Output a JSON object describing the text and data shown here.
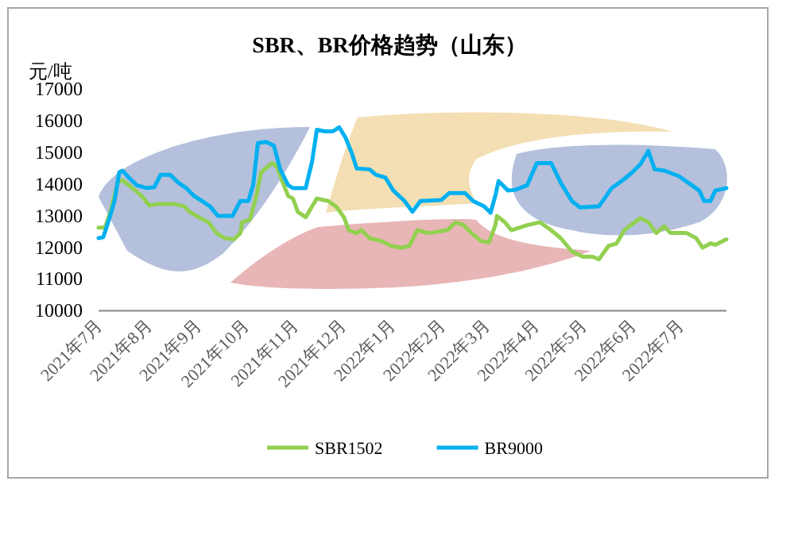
{
  "chart_data": {
    "type": "line",
    "title": "SBR、BR价格趋势（山东）",
    "ylabel": "元/吨",
    "xlim": [
      "2021-07-01",
      "2022-07-30"
    ],
    "xticks": [
      {
        "value": "2021-07-01",
        "label": "2021年7月"
      },
      {
        "value": "2021-08-01",
        "label": "2021年8月"
      },
      {
        "value": "2021-09-01",
        "label": "2021年9月"
      },
      {
        "value": "2021-10-01",
        "label": "2021年10月"
      },
      {
        "value": "2021-11-01",
        "label": "2021年11月"
      },
      {
        "value": "2021-12-01",
        "label": "2021年12月"
      },
      {
        "value": "2022-01-01",
        "label": "2022年1月"
      },
      {
        "value": "2022-02-01",
        "label": "2022年2月"
      },
      {
        "value": "2022-03-01",
        "label": "2022年3月"
      },
      {
        "value": "2022-04-01",
        "label": "2022年4月"
      },
      {
        "value": "2022-05-01",
        "label": "2022年5月"
      },
      {
        "value": "2022-06-01",
        "label": "2022年6月"
      },
      {
        "value": "2022-07-01",
        "label": "2022年7月"
      }
    ],
    "ylim": [
      10000,
      17000
    ],
    "yticks": [
      10000,
      11000,
      12000,
      13000,
      14000,
      15000,
      16000,
      17000
    ],
    "legend": "bottom",
    "series": [
      {
        "name": "SBR1502",
        "color": "#92d050",
        "x": [
          "2021-07-01",
          "2021-07-05",
          "2021-07-08",
          "2021-07-13",
          "2021-07-16",
          "2021-07-21",
          "2021-07-28",
          "2021-08-02",
          "2021-08-07",
          "2021-08-17",
          "2021-08-24",
          "2021-08-27",
          "2021-09-03",
          "2021-09-08",
          "2021-09-13",
          "2021-09-18",
          "2021-09-24",
          "2021-09-28",
          "2021-09-29",
          "2021-10-04",
          "2021-10-08",
          "2021-10-11",
          "2021-10-18",
          "2021-10-21",
          "2021-10-24",
          "2021-10-28",
          "2021-10-31",
          "2021-11-03",
          "2021-11-08",
          "2021-11-12",
          "2021-11-15",
          "2021-11-22",
          "2021-11-27",
          "2021-12-02",
          "2021-12-05",
          "2021-12-10",
          "2021-12-13",
          "2021-12-18",
          "2021-12-25",
          "2022-01-01",
          "2022-01-07",
          "2022-01-12",
          "2022-01-17",
          "2022-01-24",
          "2022-02-05",
          "2022-02-10",
          "2022-02-15",
          "2022-02-20",
          "2022-02-26",
          "2022-03-03",
          "2022-03-07",
          "2022-03-08",
          "2022-03-13",
          "2022-03-17",
          "2022-03-22",
          "2022-03-27",
          "2022-04-04",
          "2022-04-11",
          "2022-04-17",
          "2022-04-24",
          "2022-05-01",
          "2022-05-07",
          "2022-05-11",
          "2022-05-17",
          "2022-05-22",
          "2022-05-27",
          "2022-05-31",
          "2022-06-06",
          "2022-06-11",
          "2022-06-16",
          "2022-06-21",
          "2022-06-25",
          "2022-07-05",
          "2022-07-11",
          "2022-07-15",
          "2022-07-20",
          "2022-07-23",
          "2022-07-30"
        ],
        "values": [
          12620,
          12620,
          13040,
          14040,
          14120,
          13920,
          13620,
          13320,
          13370,
          13370,
          13290,
          13120,
          12920,
          12790,
          12450,
          12290,
          12250,
          12450,
          12790,
          12870,
          13620,
          14370,
          14660,
          14540,
          14120,
          13620,
          13540,
          13120,
          12950,
          13290,
          13540,
          13460,
          13290,
          12950,
          12540,
          12450,
          12540,
          12290,
          12200,
          12040,
          11990,
          12040,
          12540,
          12450,
          12540,
          12790,
          12700,
          12450,
          12200,
          12150,
          12700,
          12990,
          12790,
          12540,
          12620,
          12700,
          12790,
          12540,
          12290,
          11870,
          11700,
          11700,
          11620,
          12040,
          12120,
          12540,
          12700,
          12920,
          12790,
          12450,
          12660,
          12450,
          12450,
          12290,
          11990,
          12120,
          12080,
          12250
        ]
      },
      {
        "name": "BR9000",
        "color": "#00b0f0",
        "x": [
          "2021-07-01",
          "2021-07-04",
          "2021-07-08",
          "2021-07-11",
          "2021-07-14",
          "2021-07-16",
          "2021-07-20",
          "2021-07-25",
          "2021-07-31",
          "2021-08-05",
          "2021-08-09",
          "2021-08-15",
          "2021-08-20",
          "2021-08-25",
          "2021-08-30",
          "2021-09-04",
          "2021-09-09",
          "2021-09-14",
          "2021-09-23",
          "2021-09-28",
          "2021-10-03",
          "2021-10-06",
          "2021-10-09",
          "2021-10-14",
          "2021-10-19",
          "2021-10-23",
          "2021-10-28",
          "2021-10-31",
          "2021-11-08",
          "2021-11-12",
          "2021-11-15",
          "2021-11-20",
          "2021-11-25",
          "2021-11-29",
          "2021-12-03",
          "2021-12-07",
          "2021-12-10",
          "2021-12-18",
          "2021-12-22",
          "2021-12-28",
          "2022-01-02",
          "2022-01-09",
          "2022-01-14",
          "2022-01-19",
          "2022-02-01",
          "2022-02-06",
          "2022-02-16",
          "2022-02-21",
          "2022-02-28",
          "2022-03-04",
          "2022-03-07",
          "2022-03-09",
          "2022-03-15",
          "2022-03-20",
          "2022-03-27",
          "2022-04-02",
          "2022-04-11",
          "2022-04-17",
          "2022-04-24",
          "2022-04-29",
          "2022-05-11",
          "2022-05-19",
          "2022-05-26",
          "2022-06-01",
          "2022-06-06",
          "2022-06-11",
          "2022-06-15",
          "2022-06-21",
          "2022-06-30",
          "2022-07-06",
          "2022-07-13",
          "2022-07-16",
          "2022-07-20",
          "2022-07-23",
          "2022-07-30"
        ],
        "values": [
          12290,
          12320,
          12950,
          13460,
          14370,
          14420,
          14200,
          13960,
          13870,
          13900,
          14290,
          14290,
          14040,
          13870,
          13620,
          13460,
          13290,
          12990,
          12990,
          13460,
          13460,
          13960,
          15290,
          15330,
          15210,
          14460,
          13960,
          13870,
          13870,
          14710,
          15710,
          15660,
          15660,
          15790,
          15460,
          14960,
          14490,
          14460,
          14290,
          14200,
          13790,
          13460,
          13120,
          13460,
          13490,
          13710,
          13710,
          13460,
          13290,
          13090,
          13630,
          14090,
          13790,
          13820,
          13960,
          14660,
          14660,
          14040,
          13460,
          13260,
          13290,
          13870,
          14120,
          14370,
          14620,
          15040,
          14460,
          14420,
          14250,
          14040,
          13790,
          13460,
          13460,
          13790,
          13870
        ]
      }
    ]
  }
}
